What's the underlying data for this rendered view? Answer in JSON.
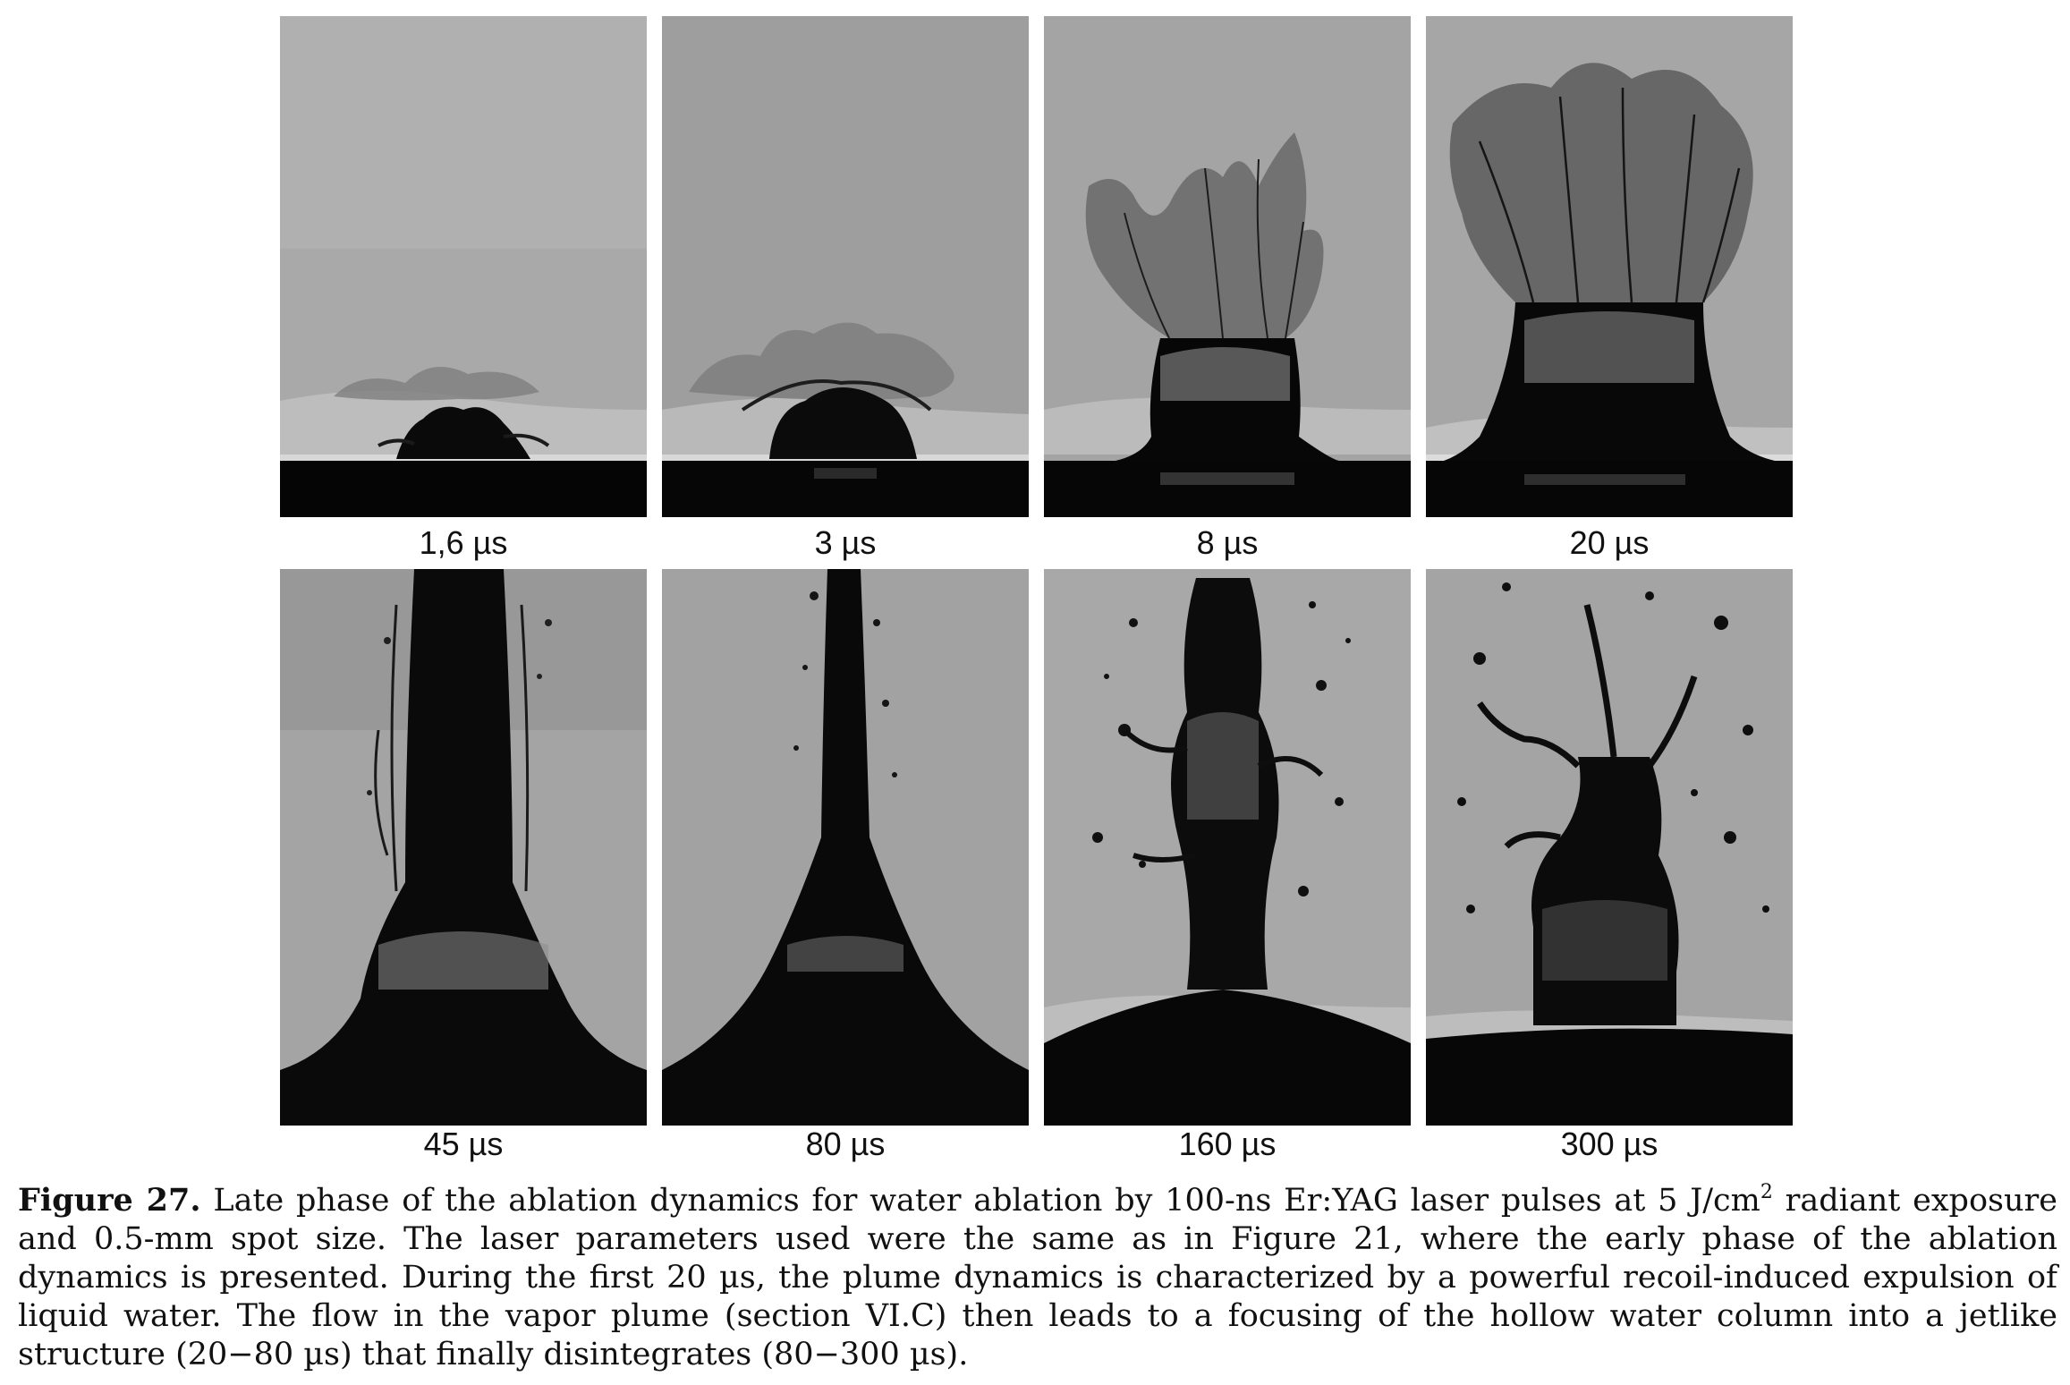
{
  "figure": {
    "panels_row1": [
      {
        "label": "1,6 µs",
        "image": "ablation-plume-1-6us"
      },
      {
        "label": "3 µs",
        "image": "ablation-plume-3us"
      },
      {
        "label": "8 µs",
        "image": "ablation-plume-8us"
      },
      {
        "label": "20 µs",
        "image": "ablation-plume-20us"
      }
    ],
    "panels_row2": [
      {
        "label": "45 µs",
        "image": "ablation-jet-45us"
      },
      {
        "label": "80 µs",
        "image": "ablation-jet-80us"
      },
      {
        "label": "160 µs",
        "image": "ablation-jet-160us"
      },
      {
        "label": "300 µs",
        "image": "ablation-jet-300us"
      }
    ]
  },
  "caption": {
    "label": "Figure 27.",
    "text_before_sup": "Late phase of the ablation dynamics for water ablation by 100-ns Er:YAG laser pulses at 5 J/cm",
    "sup": "2",
    "text_after_sup": "radiant exposure and 0.5-mm spot size. The laser parameters used were the same as in Figure 21, where the early phase of the ablation dynamics is presented. During the first 20 µs, the plume dynamics is characterized by a powerful recoil-induced expulsion of liquid water. The flow in the vapor plume (section VI.C) then leads to a focusing of the hollow water column into a jetlike structure (20−80 µs) that finally disintegrates (80−300 µs)."
  }
}
